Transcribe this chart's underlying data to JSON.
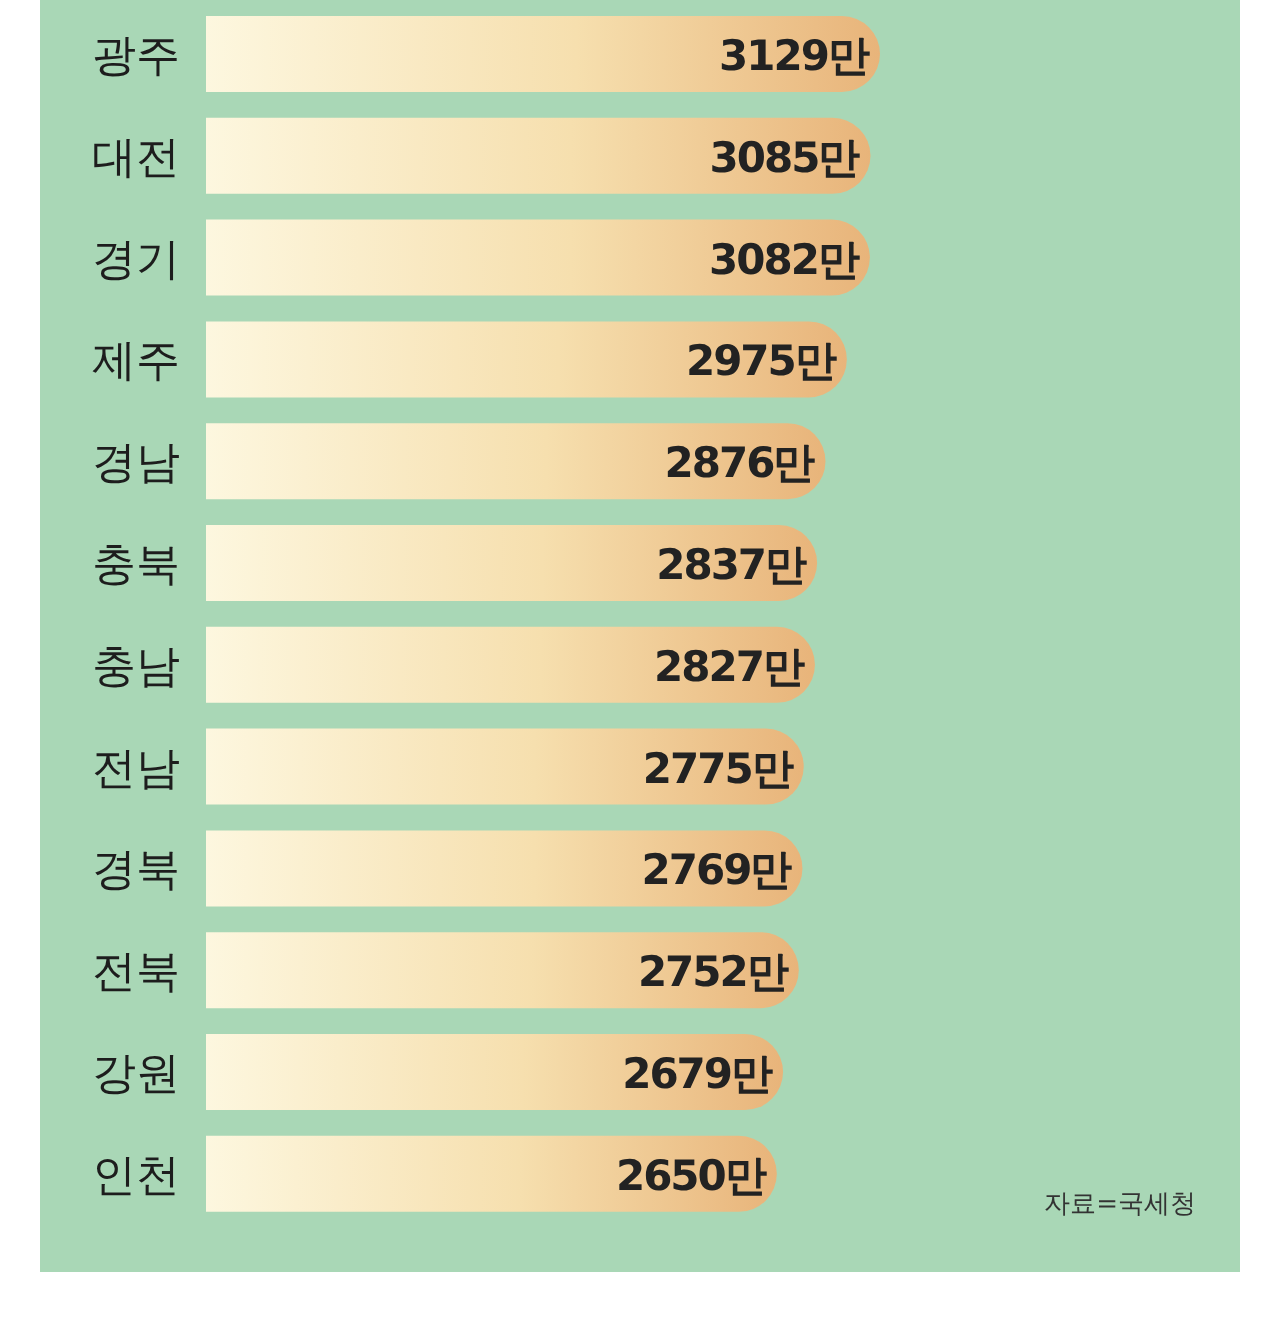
{
  "chart_data": {
    "type": "bar",
    "orientation": "horizontal",
    "categories": [
      "광주",
      "대전",
      "경기",
      "제주",
      "경남",
      "충북",
      "충남",
      "전남",
      "경북",
      "전북",
      "강원",
      "인천"
    ],
    "values": [
      3129,
      3085,
      3082,
      2975,
      2876,
      2837,
      2827,
      2775,
      2769,
      2752,
      2679,
      2650
    ],
    "value_labels": [
      "3129만",
      "3085만",
      "3082만",
      "2975만",
      "2876만",
      "2837만",
      "2827만",
      "2775만",
      "2769만",
      "2752만",
      "2679만",
      "2650만"
    ],
    "color": "#e8b47a",
    "annotations": [
      "자료=국세청"
    ]
  }
}
